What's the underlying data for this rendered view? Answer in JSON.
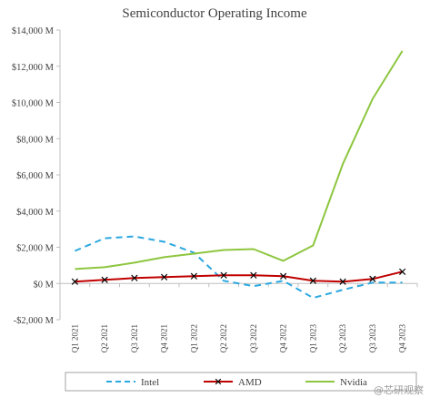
{
  "chart_data": {
    "type": "line",
    "title": "Semiconductor Operating Income",
    "xlabel": "",
    "ylabel": "",
    "categories": [
      "Q1 2021",
      "Q2 2021",
      "Q3 2021",
      "Q4 2021",
      "Q1 2022",
      "Q2 2022",
      "Q3 2022",
      "Q4 2022",
      "Q1 2023",
      "Q2 2023",
      "Q3 2023",
      "Q4 2023"
    ],
    "ylim": [
      -2000,
      14000
    ],
    "yticks": [
      -2000,
      0,
      2000,
      4000,
      6000,
      8000,
      10000,
      12000,
      14000
    ],
    "ytick_labels": [
      "-$2,000 M",
      "$0 M",
      "$2,000 M",
      "$4,000 M",
      "$6,000 M",
      "$8,000 M",
      "$10,000 M",
      "$12,000 M",
      "$14,000 M"
    ],
    "grid": false,
    "legend_position": "bottom",
    "series": [
      {
        "name": "Intel",
        "color": "#2BA8E0",
        "style": "dashed",
        "marker": "none",
        "values": [
          1800,
          2500,
          2600,
          2300,
          1700,
          150,
          -150,
          150,
          -800,
          -350,
          50,
          50
        ]
      },
      {
        "name": "AMD",
        "color": "#C00000",
        "style": "solid",
        "marker": "x",
        "values": [
          100,
          200,
          300,
          350,
          400,
          450,
          450,
          400,
          150,
          100,
          250,
          650
        ]
      },
      {
        "name": "Nvidia",
        "color": "#8DC63F",
        "style": "solid",
        "marker": "none",
        "values": [
          800,
          900,
          1150,
          1450,
          1650,
          1850,
          1900,
          1250,
          2100,
          6600,
          10200,
          12850
        ]
      }
    ]
  },
  "watermark": "@芯研观察"
}
